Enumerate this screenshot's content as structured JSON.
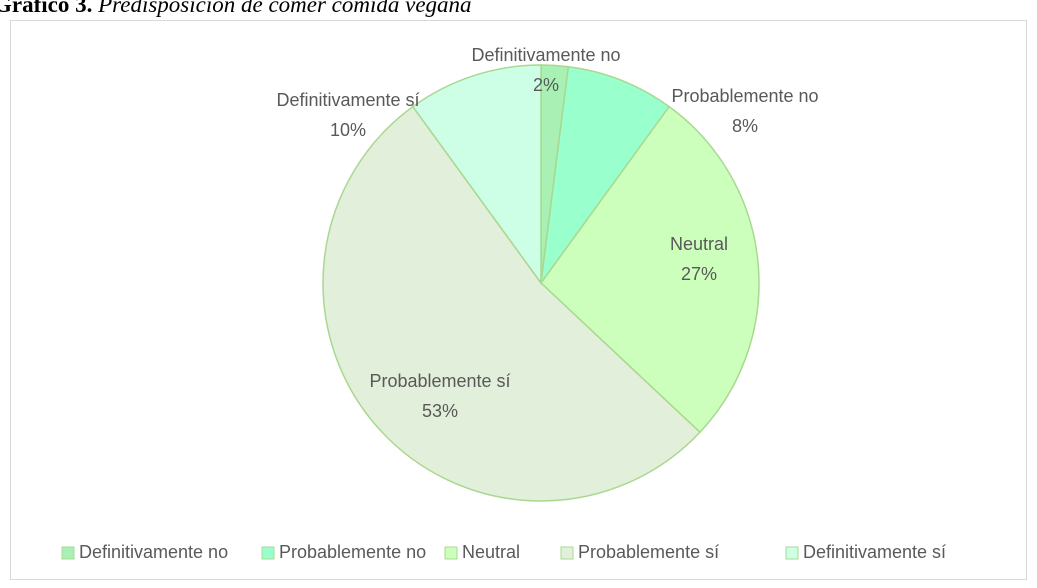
{
  "chart_data": {
    "type": "pie",
    "title_label": "Gráfico 3.",
    "title": "Predisposición de comer comida vegana",
    "categories": [
      "Definitivamente no",
      "Probablemente no",
      "Neutral",
      "Probablemente sí",
      "Definitivamente sí"
    ],
    "values": [
      2,
      8,
      27,
      53,
      10
    ],
    "value_labels": [
      "2%",
      "8%",
      "27%",
      "53%",
      "10%"
    ],
    "colors": [
      "#a8f0b4",
      "#99ffcc",
      "#ccffbb",
      "#e2efda",
      "#ccffe6"
    ],
    "legend": "bottom"
  }
}
